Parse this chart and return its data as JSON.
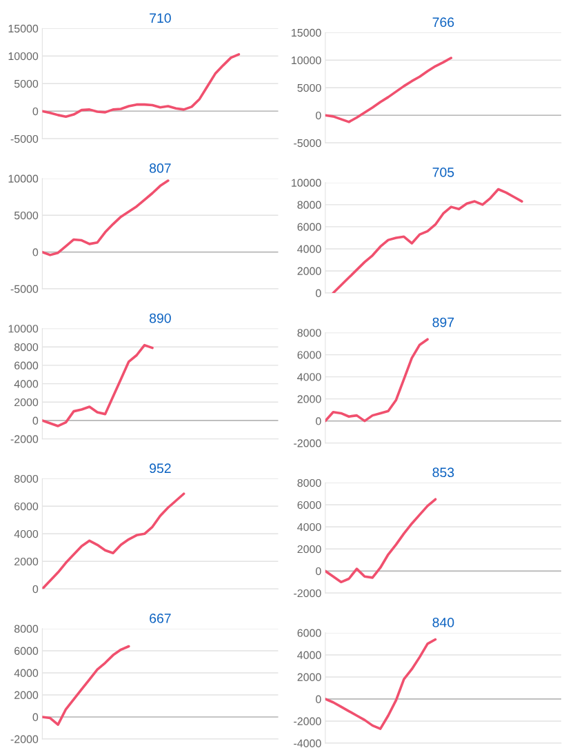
{
  "chart_data": [
    {
      "type": "line",
      "title": "710",
      "categories": [
        null,
        null,
        null,
        null,
        null,
        null,
        null,
        null,
        null,
        null,
        null,
        null,
        null,
        null,
        null,
        null,
        null,
        null,
        null,
        null,
        null,
        null,
        null,
        null,
        null,
        null,
        null,
        null,
        null,
        null,
        null
      ],
      "series": [
        {
          "color": "#f0506e",
          "values": [
            0,
            -300,
            -700,
            -1000,
            -600,
            200,
            300,
            -100,
            -200,
            300,
            400,
            900,
            1200,
            1200,
            1100,
            700,
            900,
            500,
            300,
            800,
            2200,
            4500,
            6800,
            8300,
            9700,
            10300,
            null,
            null,
            null,
            null,
            null
          ]
        }
      ],
      "ylim": [
        -5000,
        15000
      ],
      "yticks": [
        -5000,
        0,
        5000,
        10000,
        15000
      ],
      "grid": "y",
      "tick_labels": "y",
      "ref_lines": [
        {
          "axis": "y",
          "value": 0,
          "color": "#b8b8b8"
        }
      ]
    },
    {
      "type": "line",
      "title": "766",
      "categories": [
        null,
        null,
        null,
        null,
        null,
        null,
        null,
        null,
        null,
        null,
        null,
        null,
        null,
        null,
        null,
        null,
        null,
        null,
        null,
        null,
        null,
        null,
        null,
        null,
        null,
        null,
        null,
        null,
        null,
        null,
        null
      ],
      "series": [
        {
          "color": "#f0506e",
          "values": [
            0,
            -200,
            -700,
            -1200,
            -400,
            500,
            1400,
            2400,
            3300,
            4300,
            5300,
            6200,
            7000,
            8000,
            8900,
            9600,
            10400,
            null,
            null,
            null,
            null,
            null,
            null,
            null,
            null,
            null,
            null,
            null,
            null,
            null,
            null
          ]
        }
      ],
      "ylim": [
        -5000,
        15000
      ],
      "yticks": [
        -5000,
        0,
        5000,
        10000,
        15000
      ],
      "grid": "y",
      "tick_labels": "y",
      "ref_lines": [
        {
          "axis": "y",
          "value": 0,
          "color": "#b8b8b8"
        }
      ]
    },
    {
      "type": "line",
      "title": "807",
      "categories": [
        null,
        null,
        null,
        null,
        null,
        null,
        null,
        null,
        null,
        null,
        null,
        null,
        null,
        null,
        null,
        null,
        null,
        null,
        null,
        null,
        null,
        null,
        null,
        null,
        null,
        null,
        null,
        null,
        null,
        null,
        null
      ],
      "series": [
        {
          "color": "#f0506e",
          "values": [
            0,
            -400,
            -100,
            800,
            1700,
            1600,
            1100,
            1300,
            2700,
            3800,
            4800,
            5500,
            6200,
            7100,
            8000,
            9000,
            9700,
            null,
            null,
            null,
            null,
            null,
            null,
            null,
            null,
            null,
            null,
            null,
            null,
            null,
            null
          ]
        }
      ],
      "ylim": [
        -5000,
        10000
      ],
      "yticks": [
        -5000,
        0,
        5000,
        10000
      ],
      "grid": "y",
      "tick_labels": "y",
      "ref_lines": [
        {
          "axis": "y",
          "value": 0,
          "color": "#b8b8b8"
        }
      ]
    },
    {
      "type": "line",
      "title": "705",
      "categories": [
        null,
        null,
        null,
        null,
        null,
        null,
        null,
        null,
        null,
        null,
        null,
        null,
        null,
        null,
        null,
        null,
        null,
        null,
        null,
        null,
        null,
        null,
        null,
        null,
        null,
        null,
        null,
        null,
        null,
        null,
        null
      ],
      "series": [
        {
          "color": "#f0506e",
          "values": [
            null,
            0,
            700,
            1400,
            2100,
            2800,
            3400,
            4200,
            4800,
            5000,
            5100,
            4500,
            5300,
            5600,
            6200,
            7200,
            7800,
            7600,
            8100,
            8300,
            8000,
            8600,
            9400,
            9100,
            8700,
            8300,
            null,
            null,
            null,
            null,
            null
          ]
        }
      ],
      "ylim": [
        0,
        10000
      ],
      "yticks": [
        0,
        2000,
        4000,
        6000,
        8000,
        10000
      ],
      "grid": "y",
      "tick_labels": "y"
    },
    {
      "type": "line",
      "title": "890",
      "categories": [
        null,
        null,
        null,
        null,
        null,
        null,
        null,
        null,
        null,
        null,
        null,
        null,
        null,
        null,
        null,
        null,
        null,
        null,
        null,
        null,
        null,
        null,
        null,
        null,
        null,
        null,
        null,
        null,
        null,
        null,
        null
      ],
      "series": [
        {
          "color": "#f0506e",
          "values": [
            0,
            -300,
            -600,
            -200,
            1000,
            1200,
            1500,
            900,
            700,
            2600,
            4500,
            6400,
            7100,
            8200,
            7900,
            null,
            null,
            null,
            null,
            null,
            null,
            null,
            null,
            null,
            null,
            null,
            null,
            null,
            null,
            null,
            null
          ]
        }
      ],
      "ylim": [
        -2000,
        10000
      ],
      "yticks": [
        -2000,
        0,
        2000,
        4000,
        6000,
        8000,
        10000
      ],
      "grid": "y",
      "tick_labels": "y",
      "ref_lines": [
        {
          "axis": "y",
          "value": 0,
          "color": "#b8b8b8"
        }
      ]
    },
    {
      "type": "line",
      "title": "897",
      "categories": [
        null,
        null,
        null,
        null,
        null,
        null,
        null,
        null,
        null,
        null,
        null,
        null,
        null,
        null,
        null,
        null,
        null,
        null,
        null,
        null,
        null,
        null,
        null,
        null,
        null,
        null,
        null,
        null,
        null,
        null,
        null
      ],
      "series": [
        {
          "color": "#f0506e",
          "values": [
            0,
            800,
            700,
            400,
            500,
            0,
            500,
            700,
            900,
            1900,
            3800,
            5700,
            6900,
            7400,
            null,
            null,
            null,
            null,
            null,
            null,
            null,
            null,
            null,
            null,
            null,
            null,
            null,
            null,
            null,
            null,
            null
          ]
        }
      ],
      "ylim": [
        -2000,
        8000
      ],
      "yticks": [
        -2000,
        0,
        2000,
        4000,
        6000,
        8000
      ],
      "grid": "y",
      "tick_labels": "y",
      "ref_lines": [
        {
          "axis": "y",
          "value": 0,
          "color": "#b8b8b8"
        }
      ]
    },
    {
      "type": "line",
      "title": "952",
      "categories": [
        null,
        null,
        null,
        null,
        null,
        null,
        null,
        null,
        null,
        null,
        null,
        null,
        null,
        null,
        null,
        null,
        null,
        null,
        null,
        null,
        null,
        null,
        null,
        null,
        null,
        null,
        null,
        null,
        null,
        null,
        null
      ],
      "series": [
        {
          "color": "#f0506e",
          "values": [
            0,
            600,
            1200,
            1900,
            2500,
            3100,
            3500,
            3200,
            2800,
            2600,
            3200,
            3600,
            3900,
            4000,
            4500,
            5300,
            5900,
            6400,
            6900,
            null,
            null,
            null,
            null,
            null,
            null,
            null,
            null,
            null,
            null,
            null,
            null
          ]
        }
      ],
      "ylim": [
        0,
        8000
      ],
      "yticks": [
        0,
        2000,
        4000,
        6000,
        8000
      ],
      "grid": "y",
      "tick_labels": "y"
    },
    {
      "type": "line",
      "title": "853",
      "categories": [
        null,
        null,
        null,
        null,
        null,
        null,
        null,
        null,
        null,
        null,
        null,
        null,
        null,
        null,
        null,
        null,
        null,
        null,
        null,
        null,
        null,
        null,
        null,
        null,
        null,
        null,
        null,
        null,
        null,
        null,
        null
      ],
      "series": [
        {
          "color": "#f0506e",
          "values": [
            0,
            -500,
            -1000,
            -700,
            200,
            -500,
            -600,
            300,
            1500,
            2400,
            3400,
            4300,
            5100,
            5900,
            6500,
            null,
            null,
            null,
            null,
            null,
            null,
            null,
            null,
            null,
            null,
            null,
            null,
            null,
            null,
            null,
            null
          ]
        }
      ],
      "ylim": [
        -2000,
        8000
      ],
      "yticks": [
        -2000,
        0,
        2000,
        4000,
        6000,
        8000
      ],
      "grid": "y",
      "tick_labels": "y",
      "ref_lines": [
        {
          "axis": "y",
          "value": 0,
          "color": "#b8b8b8"
        }
      ]
    },
    {
      "type": "line",
      "title": "667",
      "categories": [
        null,
        null,
        null,
        null,
        null,
        null,
        null,
        null,
        null,
        null,
        null,
        null,
        null,
        null,
        null,
        null,
        null,
        null,
        null,
        null,
        null,
        null,
        null,
        null,
        null,
        null,
        null,
        null,
        null,
        null,
        null
      ],
      "series": [
        {
          "color": "#f0506e",
          "values": [
            0,
            -100,
            -700,
            700,
            1600,
            2500,
            3400,
            4300,
            4900,
            5600,
            6100,
            6400,
            null,
            null,
            null,
            null,
            null,
            null,
            null,
            null,
            null,
            null,
            null,
            null,
            null,
            null,
            null,
            null,
            null,
            null,
            null
          ]
        }
      ],
      "ylim": [
        -2000,
        8000
      ],
      "yticks": [
        -2000,
        0,
        2000,
        4000,
        6000,
        8000
      ],
      "grid": "y",
      "tick_labels": "y",
      "ref_lines": [
        {
          "axis": "y",
          "value": 0,
          "color": "#b8b8b8"
        }
      ]
    },
    {
      "type": "line",
      "title": "840",
      "categories": [
        null,
        null,
        null,
        null,
        null,
        null,
        null,
        null,
        null,
        null,
        null,
        null,
        null,
        null,
        null,
        null,
        null,
        null,
        null,
        null,
        null,
        null,
        null,
        null,
        null,
        null,
        null,
        null,
        null,
        null,
        null
      ],
      "series": [
        {
          "color": "#f0506e",
          "values": [
            0,
            -300,
            -700,
            -1100,
            -1500,
            -1900,
            -2400,
            -2700,
            -1500,
            -100,
            1800,
            2700,
            3800,
            5000,
            5400,
            null,
            null,
            null,
            null,
            null,
            null,
            null,
            null,
            null,
            null,
            null,
            null,
            null,
            null,
            null,
            null
          ]
        }
      ],
      "ylim": [
        -4000,
        6000
      ],
      "yticks": [
        -4000,
        -2000,
        0,
        2000,
        4000,
        6000
      ],
      "grid": "y",
      "tick_labels": "y",
      "ref_lines": [
        {
          "axis": "y",
          "value": 0,
          "color": "#b8b8b8"
        }
      ]
    }
  ]
}
